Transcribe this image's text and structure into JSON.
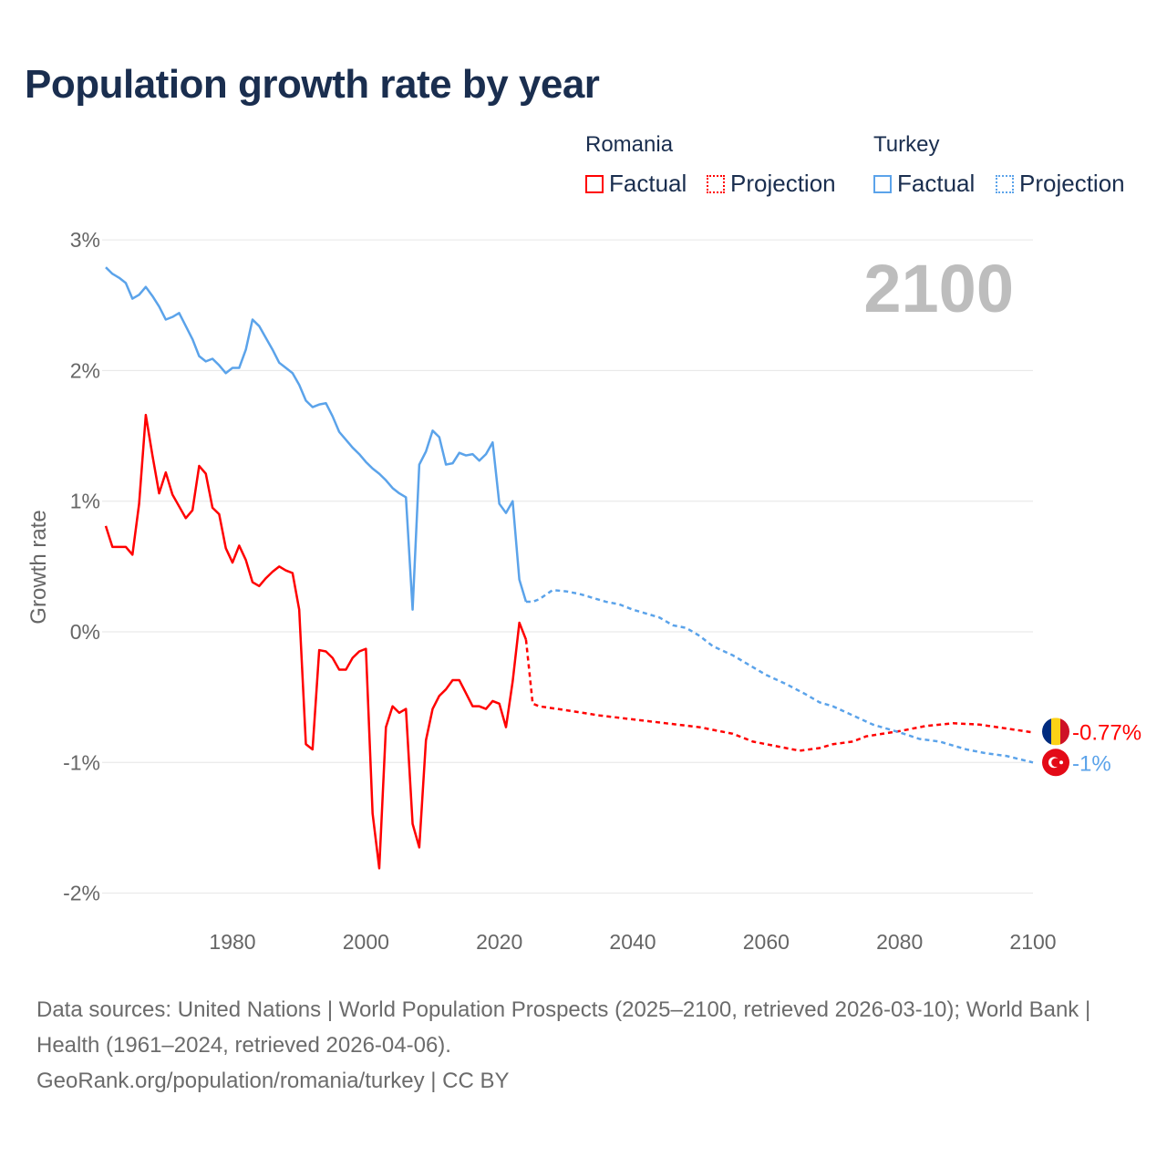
{
  "title": "Population growth rate by year",
  "legend": {
    "groups": [
      {
        "country": "Romania",
        "factual": "Factual",
        "projection": "Projection",
        "color": "#ff0000"
      },
      {
        "country": "Turkey",
        "factual": "Factual",
        "projection": "Projection",
        "color": "#5ba3ea"
      }
    ]
  },
  "footer": {
    "sources": "Data sources: United Nations | World Population Prospects (2025–2100, retrieved 2026-03-10); World Bank | Health (1961–2024, retrieved 2026-04-06).",
    "credit": "GeoRank.org/population/romania/turkey | CC BY"
  },
  "chart_data": {
    "type": "line",
    "title": "Population growth rate by year",
    "xlabel": "",
    "ylabel": "Growth rate",
    "xlim": [
      1961,
      2100
    ],
    "ylim": [
      -2.2,
      3
    ],
    "x_ticks": [
      1980,
      2000,
      2020,
      2040,
      2060,
      2080,
      2100
    ],
    "y_ticks": [
      3,
      2,
      1,
      0,
      -1,
      -2
    ],
    "y_tick_labels": [
      "3%",
      "2%",
      "1%",
      "0%",
      "-1%",
      "-2%"
    ],
    "grid": true,
    "year_watermark": "2100",
    "series": [
      {
        "name": "Romania",
        "color": "#ff0000",
        "end_label": "-0.77%",
        "factual": {
          "start_year": 1961,
          "values": [
            0.81,
            0.65,
            0.65,
            0.65,
            0.59,
            0.98,
            1.66,
            1.35,
            1.06,
            1.22,
            1.05,
            0.96,
            0.87,
            0.93,
            1.27,
            1.21,
            0.95,
            0.9,
            0.64,
            0.53,
            0.66,
            0.55,
            0.38,
            0.35,
            0.41,
            0.46,
            0.5,
            0.47,
            0.45,
            0.17,
            -0.86,
            -0.9,
            -0.14,
            -0.15,
            -0.2,
            -0.29,
            -0.29,
            -0.2,
            -0.15,
            -0.13,
            -1.39,
            -1.81,
            -0.73,
            -0.57,
            -0.62,
            -0.59,
            -1.47,
            -1.65,
            -0.83,
            -0.59,
            -0.49,
            -0.44,
            -0.37,
            -0.37,
            -0.47,
            -0.57,
            -0.57,
            -0.59,
            -0.53,
            -0.55,
            -0.73,
            -0.38,
            0.07,
            -0.06
          ]
        },
        "projection": {
          "x": [
            2024,
            2025,
            2026,
            2030,
            2035,
            2040,
            2045,
            2050,
            2055,
            2058,
            2062,
            2065,
            2068,
            2070,
            2073,
            2075,
            2080,
            2084,
            2088,
            2092,
            2096,
            2100
          ],
          "values": [
            -0.06,
            -0.55,
            -0.57,
            -0.6,
            -0.64,
            -0.67,
            -0.7,
            -0.73,
            -0.78,
            -0.84,
            -0.88,
            -0.91,
            -0.89,
            -0.86,
            -0.84,
            -0.8,
            -0.76,
            -0.72,
            -0.7,
            -0.71,
            -0.74,
            -0.77
          ]
        }
      },
      {
        "name": "Turkey",
        "color": "#5ba3ea",
        "end_label": "-1%",
        "factual": {
          "start_year": 1961,
          "values": [
            2.79,
            2.74,
            2.71,
            2.67,
            2.55,
            2.58,
            2.64,
            2.57,
            2.49,
            2.39,
            2.41,
            2.44,
            2.34,
            2.24,
            2.11,
            2.07,
            2.09,
            2.04,
            1.98,
            2.02,
            2.02,
            2.16,
            2.39,
            2.34,
            2.25,
            2.16,
            2.06,
            2.02,
            1.98,
            1.89,
            1.77,
            1.72,
            1.74,
            1.75,
            1.65,
            1.53,
            1.47,
            1.41,
            1.36,
            1.3,
            1.25,
            1.21,
            1.16,
            1.1,
            1.06,
            1.03,
            0.17,
            1.28,
            1.38,
            1.54,
            1.49,
            1.28,
            1.29,
            1.37,
            1.35,
            1.36,
            1.31,
            1.36,
            1.45,
            0.98,
            0.91,
            1.0,
            0.4,
            0.23
          ]
        },
        "projection": {
          "x": [
            2024,
            2025,
            2026,
            2028,
            2030,
            2032,
            2034,
            2036,
            2038,
            2040,
            2042,
            2044,
            2046,
            2048,
            2050,
            2052,
            2055,
            2058,
            2060,
            2063,
            2066,
            2068,
            2070,
            2073,
            2076,
            2080,
            2083,
            2086,
            2090,
            2093,
            2096,
            2100
          ],
          "values": [
            0.23,
            0.23,
            0.25,
            0.32,
            0.31,
            0.29,
            0.26,
            0.23,
            0.21,
            0.17,
            0.14,
            0.11,
            0.05,
            0.03,
            -0.03,
            -0.11,
            -0.18,
            -0.27,
            -0.33,
            -0.4,
            -0.48,
            -0.54,
            -0.57,
            -0.64,
            -0.71,
            -0.77,
            -0.82,
            -0.84,
            -0.9,
            -0.93,
            -0.95,
            -1.0
          ]
        }
      }
    ]
  }
}
